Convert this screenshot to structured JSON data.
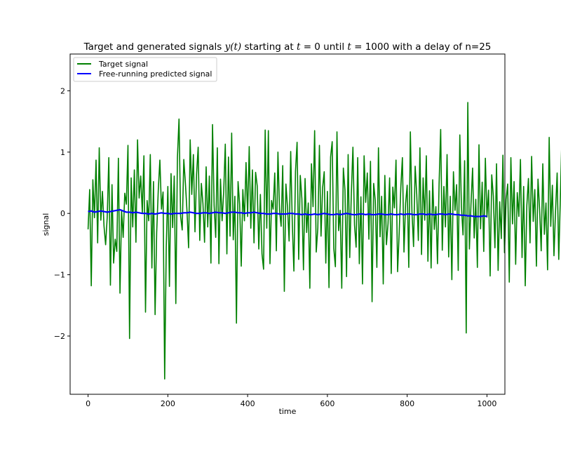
{
  "chart_data": {
    "type": "line",
    "title_parts": {
      "p1": "Target and generated signals ",
      "p2": "y(t)",
      "p3": " starting at ",
      "p4": "t",
      "p5": " = 0 until ",
      "p6": "t",
      "p7": " = 1000 with a delay of n=25"
    },
    "xlabel": "time",
    "ylabel": "signal",
    "xlim": [
      -45,
      1045
    ],
    "ylim": [
      -2.95,
      2.6
    ],
    "xticks": [
      0,
      200,
      400,
      600,
      800,
      1000
    ],
    "yticks": [
      -2,
      -1,
      0,
      1,
      2
    ],
    "grid": false,
    "legend_position": "top-left",
    "series": [
      {
        "name": "Target signal",
        "color": "#008000",
        "x_start": 0,
        "x_step": 4,
        "values": [
          -0.26,
          0.39,
          -1.18,
          0.55,
          -0.07,
          0.87,
          -0.48,
          1.07,
          -0.11,
          0.36,
          -0.21,
          -0.51,
          -0.06,
          0.91,
          -1.17,
          0.47,
          -0.81,
          -0.42,
          -0.62,
          0.9,
          -1.3,
          0.05,
          -0.39,
          0.33,
          0.15,
          1.11,
          -2.04,
          0.58,
          -0.22,
          0.71,
          -0.47,
          1.2,
          0.25,
          0.61,
          0.01,
          0.94,
          -1.61,
          0.21,
          -0.12,
          0.96,
          -0.89,
          0.52,
          -1.65,
          -0.31,
          0.38,
          0.87,
          0.07,
          0.35,
          -2.7,
          -0.55,
          0.44,
          -1.19,
          0.65,
          -0.23,
          0.61,
          -1.47,
          0.91,
          1.54,
          -0.05,
          -0.27,
          0.88,
          0.49,
          0.04,
          -0.56,
          1.2,
          0.31,
          0.96,
          -0.3,
          0.64,
          1.08,
          -0.44,
          0.49,
          0.16,
          -0.47,
          0.76,
          -0.22,
          0.61,
          -0.81,
          1.45,
          0.13,
          -0.39,
          1.07,
          -0.82,
          0.56,
          -0.12,
          0.35,
          1.13,
          -0.66,
          0.92,
          -0.37,
          1.31,
          -0.43,
          0.28,
          -1.79,
          0.52,
          0.15,
          -0.86,
          0.39,
          -0.12,
          0.83,
          -0.05,
          1.09,
          -0.24,
          0.71,
          -0.48,
          0.67,
          0.45,
          -0.58,
          0.31,
          -0.66,
          -0.91,
          1.36,
          -0.24,
          1.35,
          -0.82,
          0.21,
          0.07,
          0.66,
          -0.61,
          1.0,
          0.05,
          -0.21,
          0.78,
          -1.27,
          0.48,
          0.1,
          -0.45,
          1.01,
          -0.17,
          -0.94,
          0.69,
          1.16,
          -0.75,
          0.62,
          0.24,
          -0.92,
          0.57,
          -0.31,
          0.17,
          -1.22,
          0.81,
          0.11,
          1.35,
          -0.63,
          -0.24,
          1.11,
          -0.37,
          0.42,
          0.68,
          -0.81,
          0.36,
          -1.21,
          0.92,
          1.17,
          -0.57,
          -0.87,
          1.33,
          -0.28,
          0.05,
          -1.22,
          0.74,
          0.38,
          -1.03,
          0.96,
          -0.72,
          0.33,
          1.08,
          -0.19,
          -0.55,
          0.91,
          -0.82,
          0.27,
          -1.15,
          0.94,
          0.18,
          0.66,
          -0.42,
          0.85,
          -1.44,
          0.49,
          0.21,
          -0.88,
          1.07,
          -0.38,
          0.28,
          -1.15,
          0.62,
          -0.51,
          -0.17,
          0.58,
          -0.98,
          0.43,
          0.09,
          0.87,
          -0.95,
          -0.31,
          0.42,
          0.91,
          -0.63,
          0.16,
          0.46,
          -0.88,
          1.33,
          0.02,
          -0.54,
          0.77,
          0.31,
          -0.44,
          1.07,
          -0.67,
          0.58,
          -0.11,
          0.94,
          -0.78,
          0.37,
          -0.89,
          0.55,
          -0.26,
          0.11,
          -0.82,
          0.48,
          1.37,
          -0.6,
          0.44,
          -0.22,
          0.96,
          -0.71,
          0.28,
          -1.08,
          0.68,
          0.05,
          0.47,
          -0.93,
          1.28,
          0.11,
          -0.35,
          0.86,
          -1.95,
          1.81,
          -0.58,
          0.15,
          0.74,
          -0.4,
          0.23,
          -0.88,
          1.12,
          -0.25,
          0.51,
          -0.62,
          0.9,
          -0.06,
          0.38,
          -1.02,
          0.63,
          0.28,
          -0.56,
          0.81,
          -0.93,
          0.19,
          -0.41,
          0.95,
          -0.64,
          0.23,
          0.48,
          -1.12,
          0.91,
          -0.17,
          0.52,
          -0.83,
          0.34,
          -0.05,
          0.88,
          -0.72,
          0.44,
          -1.18,
          0.13,
          0.57,
          -0.48,
          0.93,
          -0.13,
          0.39,
          -0.86,
          0.56,
          0.07,
          -0.61,
          0.81,
          -0.34,
          0.17,
          -0.92,
          1.24,
          -0.21,
          0.46,
          -0.69,
          0.05,
          0.66,
          -0.75,
          0.25,
          1.29,
          -1.14,
          0.71,
          -0.2,
          0.36,
          -0.86,
          0.96,
          0.01,
          -0.51,
          0.65,
          -0.06,
          0.21,
          -0.99,
          1.52,
          -0.36,
          0.48,
          -1.04,
          2.46,
          -0.53,
          0.89,
          -0.16,
          0.29,
          -0.95,
          0.86,
          1.21,
          -0.57,
          0.43,
          -0.39,
          0.18,
          -0.79,
          1.48,
          -0.29,
          0.67,
          -0.24,
          0.11,
          -0.61,
          1.53,
          -0.4,
          0.49,
          -0.09,
          -0.91,
          0.72,
          -0.32,
          0.25,
          -1.01,
          1.21,
          -0.17,
          0.63,
          -0.78,
          0.04,
          0.96,
          -0.55,
          0.35,
          -0.98,
          0.56,
          -0.11,
          -1.12,
          1.1,
          -0.43,
          0.32,
          -0.67,
          0.82,
          0.15,
          -0.49,
          0.91,
          -0.81,
          0.33,
          -1.68,
          0.84,
          -0.26,
          0.47,
          1.03,
          -0.58,
          0.26,
          -0.37,
          0.8,
          -0.91,
          0.55,
          -0.04,
          0.37,
          -1.06,
          0.87,
          0.14,
          -0.31,
          0.71,
          -0.75,
          0.24,
          1.14,
          -0.44,
          0.52,
          -0.78,
          0.69,
          -0.05,
          0.4,
          -1.04,
          1.32,
          -0.14,
          0.35,
          -0.71,
          0.9,
          -0.4,
          0.54,
          -1.12,
          0.79,
          -0.23,
          0.47,
          0.92,
          -0.65,
          0.3,
          -0.39,
          1.18,
          -0.87,
          0.58,
          -0.01,
          0.3,
          -0.83,
          0.99,
          -0.27,
          0.52,
          -1.07,
          0.64,
          0.02,
          -0.55,
          0.76,
          -0.33,
          0.18,
          -0.92,
          1.33,
          -0.58,
          0.82,
          -0.19,
          0.63,
          0.99,
          -0.46,
          1.35,
          0.55
        ]
      },
      {
        "name": "Free-running predicted signal",
        "color": "#0000ff",
        "x_start": 0,
        "x_step": 8,
        "values": [
          0.03,
          0.04,
          0.02,
          0.03,
          0.04,
          0.03,
          0.02,
          0.03,
          0.04,
          0.05,
          0.06,
          0.04,
          0.02,
          0.02,
          0.01,
          0.02,
          0.01,
          0.0,
          0.0,
          -0.01,
          0.0,
          -0.01,
          0.0,
          0.01,
          0.0,
          0.0,
          -0.01,
          0.0,
          0.0,
          0.0,
          0.01,
          0.01,
          0.02,
          0.01,
          0.0,
          0.0,
          0.01,
          0.01,
          0.0,
          0.01,
          0.02,
          0.01,
          0.01,
          0.0,
          0.01,
          0.02,
          0.02,
          0.01,
          0.01,
          0.0,
          0.01,
          0.01,
          0.02,
          0.01,
          0.0,
          0.0,
          -0.01,
          -0.01,
          0.0,
          0.0,
          -0.01,
          -0.01,
          -0.01,
          0.0,
          0.0,
          -0.01,
          -0.01,
          -0.02,
          -0.01,
          -0.02,
          -0.02,
          -0.01,
          -0.02,
          -0.01,
          0.0,
          -0.01,
          -0.02,
          -0.02,
          -0.01,
          -0.02,
          -0.01,
          0.0,
          -0.01,
          -0.02,
          -0.02,
          -0.01,
          -0.01,
          -0.02,
          -0.01,
          -0.02,
          -0.02,
          -0.01,
          -0.01,
          -0.02,
          -0.02,
          -0.01,
          -0.02,
          -0.02,
          -0.01,
          -0.02,
          -0.01,
          -0.01,
          -0.02,
          -0.02,
          -0.01,
          -0.01,
          -0.02,
          -0.01,
          -0.02,
          -0.02,
          -0.01,
          -0.01,
          -0.02,
          -0.01,
          -0.01,
          -0.02,
          -0.02,
          -0.03,
          -0.03,
          -0.04,
          -0.04,
          -0.05,
          -0.05,
          -0.05,
          -0.04,
          -0.05
        ]
      }
    ]
  }
}
